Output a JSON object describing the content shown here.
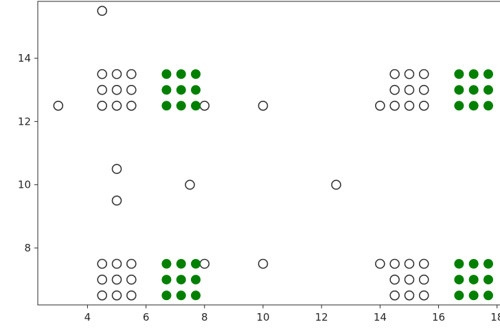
{
  "chart_data": {
    "type": "scatter",
    "title": "",
    "xlabel": "",
    "ylabel": "",
    "xlim": [
      2.3,
      18.1
    ],
    "ylim": [
      6.2,
      15.8
    ],
    "x_ticks": [
      4,
      6,
      8,
      10,
      12,
      14,
      16,
      18
    ],
    "y_ticks": [
      8,
      10,
      12,
      14
    ],
    "grid": false,
    "colors": {
      "hollow_edge": "#333333",
      "hollow_face": "#ffffff",
      "filled": "#008000",
      "axis": "#262626"
    },
    "series": [
      {
        "style": "hollow",
        "points": [
          [
            4.5,
            15.5
          ],
          [
            4.5,
            13.5
          ],
          [
            5.0,
            13.5
          ],
          [
            5.5,
            13.5
          ],
          [
            4.5,
            13.0
          ],
          [
            5.0,
            13.0
          ],
          [
            5.5,
            13.0
          ],
          [
            3.0,
            12.5
          ],
          [
            4.5,
            12.5
          ],
          [
            5.0,
            12.5
          ],
          [
            5.5,
            12.5
          ],
          [
            8.0,
            12.5
          ],
          [
            10.0,
            12.5
          ],
          [
            5.0,
            10.5
          ],
          [
            5.0,
            9.5
          ],
          [
            7.5,
            10.0
          ],
          [
            12.5,
            10.0
          ],
          [
            4.5,
            7.5
          ],
          [
            5.0,
            7.5
          ],
          [
            5.5,
            7.5
          ],
          [
            4.5,
            7.0
          ],
          [
            5.0,
            7.0
          ],
          [
            5.5,
            7.0
          ],
          [
            4.5,
            6.5
          ],
          [
            5.0,
            6.5
          ],
          [
            5.5,
            6.5
          ],
          [
            8.0,
            7.5
          ],
          [
            10.0,
            7.5
          ],
          [
            14.5,
            13.5
          ],
          [
            15.0,
            13.5
          ],
          [
            15.5,
            13.5
          ],
          [
            14.5,
            13.0
          ],
          [
            15.0,
            13.0
          ],
          [
            15.5,
            13.0
          ],
          [
            14.0,
            12.5
          ],
          [
            14.5,
            12.5
          ],
          [
            15.0,
            12.5
          ],
          [
            15.5,
            12.5
          ],
          [
            14.0,
            7.5
          ],
          [
            14.5,
            7.5
          ],
          [
            15.0,
            7.5
          ],
          [
            15.5,
            7.5
          ],
          [
            14.5,
            7.0
          ],
          [
            15.0,
            7.0
          ],
          [
            15.5,
            7.0
          ],
          [
            14.5,
            6.5
          ],
          [
            15.0,
            6.5
          ],
          [
            15.5,
            6.5
          ]
        ]
      },
      {
        "style": "filled",
        "points": [
          [
            6.7,
            13.5
          ],
          [
            7.2,
            13.5
          ],
          [
            7.7,
            13.5
          ],
          [
            6.7,
            13.0
          ],
          [
            7.2,
            13.0
          ],
          [
            7.7,
            13.0
          ],
          [
            6.7,
            12.5
          ],
          [
            7.2,
            12.5
          ],
          [
            7.7,
            12.5
          ],
          [
            6.7,
            7.5
          ],
          [
            7.2,
            7.5
          ],
          [
            7.7,
            7.5
          ],
          [
            6.7,
            7.0
          ],
          [
            7.2,
            7.0
          ],
          [
            7.7,
            7.0
          ],
          [
            6.7,
            6.5
          ],
          [
            7.2,
            6.5
          ],
          [
            7.7,
            6.5
          ],
          [
            16.7,
            13.5
          ],
          [
            17.2,
            13.5
          ],
          [
            17.7,
            13.5
          ],
          [
            16.7,
            13.0
          ],
          [
            17.2,
            13.0
          ],
          [
            17.7,
            13.0
          ],
          [
            16.7,
            12.5
          ],
          [
            17.2,
            12.5
          ],
          [
            17.7,
            12.5
          ],
          [
            16.7,
            7.5
          ],
          [
            17.2,
            7.5
          ],
          [
            17.7,
            7.5
          ],
          [
            16.7,
            7.0
          ],
          [
            17.2,
            7.0
          ],
          [
            17.7,
            7.0
          ],
          [
            16.7,
            6.5
          ],
          [
            17.2,
            6.5
          ],
          [
            17.7,
            6.5
          ]
        ]
      }
    ]
  }
}
